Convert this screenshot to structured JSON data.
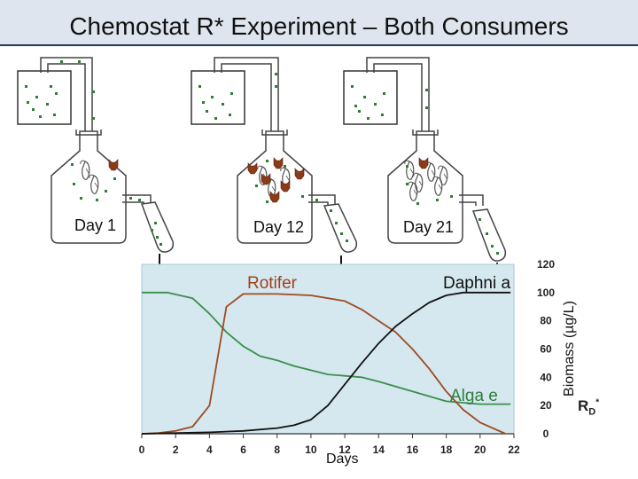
{
  "title": "Chemostat R* Experiment – Both Consumers",
  "day_labels": [
    "Day 1",
    "Day 12",
    "Day 21"
  ],
  "series_labels": {
    "rotifer": "Rotifer",
    "daphnia": "Daphni a",
    "algae": "Alga e"
  },
  "axes": {
    "xlabel": "Days",
    "ylabel": "Biomass (µg/L)",
    "rd_label": "R",
    "rd_sub": "D",
    "rd_sup": "*"
  },
  "colors": {
    "algae": "#3a8f4a",
    "rotifer": "#a04a20",
    "daphnia": "#111111",
    "plot_bg": "#d5e8f0",
    "border": "#1f3a5f",
    "nutrient": "#2f7d32"
  },
  "chart_data": {
    "type": "line",
    "title": "",
    "xlabel": "Days",
    "ylabel": "Biomass (µg/L)",
    "xlim": [
      0,
      22
    ],
    "ylim": [
      0,
      120
    ],
    "x_ticks": [
      0,
      2,
      4,
      6,
      8,
      10,
      12,
      14,
      16,
      18,
      20,
      22
    ],
    "y_ticks": [
      0,
      20,
      40,
      60,
      80,
      100,
      120
    ],
    "series": [
      {
        "name": "Alga e",
        "color": "#3a8f4a",
        "x": [
          0,
          1.5,
          3,
          4,
          5,
          6,
          7,
          8,
          9,
          10,
          11,
          12,
          13,
          14,
          16,
          18,
          20,
          21.8
        ],
        "y": [
          100,
          100,
          96,
          85,
          72,
          62,
          55,
          52,
          48,
          45,
          42,
          41,
          40,
          37,
          30,
          23,
          21,
          21
        ]
      },
      {
        "name": "Rotifer",
        "color": "#a04a20",
        "x": [
          0,
          1,
          2,
          3,
          4,
          5,
          6,
          8,
          10,
          12,
          13,
          14,
          15,
          16,
          17,
          18,
          19,
          20,
          21.5
        ],
        "y": [
          0,
          0.5,
          2,
          5,
          20,
          90,
          99,
          99,
          98,
          94,
          88,
          80,
          72,
          60,
          46,
          30,
          17,
          8,
          0
        ]
      },
      {
        "name": "Daphni a",
        "color": "#111111",
        "x": [
          0,
          4,
          6,
          8,
          9,
          10,
          11,
          12,
          13,
          14,
          15,
          16,
          17,
          18,
          19,
          20,
          21.8
        ],
        "y": [
          0,
          1,
          2,
          4,
          6,
          10,
          20,
          35,
          50,
          64,
          76,
          85,
          93,
          98,
          100,
          100,
          100
        ]
      }
    ]
  }
}
